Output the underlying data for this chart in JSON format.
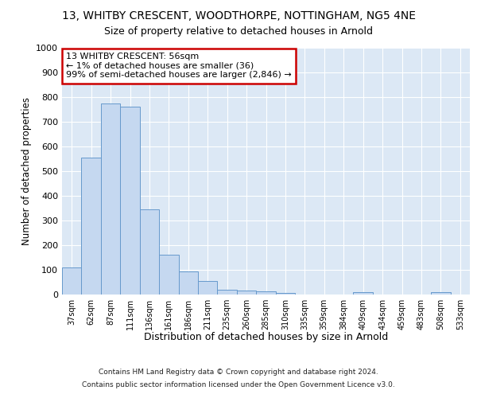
{
  "title_line1": "13, WHITBY CRESCENT, WOODTHORPE, NOTTINGHAM, NG5 4NE",
  "title_line2": "Size of property relative to detached houses in Arnold",
  "xlabel": "Distribution of detached houses by size in Arnold",
  "ylabel": "Number of detached properties",
  "categories": [
    "37sqm",
    "62sqm",
    "87sqm",
    "111sqm",
    "136sqm",
    "161sqm",
    "186sqm",
    "211sqm",
    "235sqm",
    "260sqm",
    "285sqm",
    "310sqm",
    "335sqm",
    "359sqm",
    "384sqm",
    "409sqm",
    "434sqm",
    "459sqm",
    "483sqm",
    "508sqm",
    "533sqm"
  ],
  "values": [
    110,
    555,
    775,
    760,
    345,
    160,
    95,
    55,
    20,
    15,
    12,
    5,
    0,
    0,
    0,
    10,
    0,
    0,
    0,
    10,
    0
  ],
  "bar_color": "#c5d8f0",
  "bar_edge_color": "#6699cc",
  "annotation_text": "13 WHITBY CRESCENT: 56sqm\n← 1% of detached houses are smaller (36)\n99% of semi-detached houses are larger (2,846) →",
  "annotation_box_color": "white",
  "annotation_box_edge_color": "#cc0000",
  "ylim": [
    0,
    1000
  ],
  "yticks": [
    0,
    100,
    200,
    300,
    400,
    500,
    600,
    700,
    800,
    900,
    1000
  ],
  "bg_color": "#dce8f5",
  "grid_color": "white",
  "footer_line1": "Contains HM Land Registry data © Crown copyright and database right 2024.",
  "footer_line2": "Contains public sector information licensed under the Open Government Licence v3.0."
}
